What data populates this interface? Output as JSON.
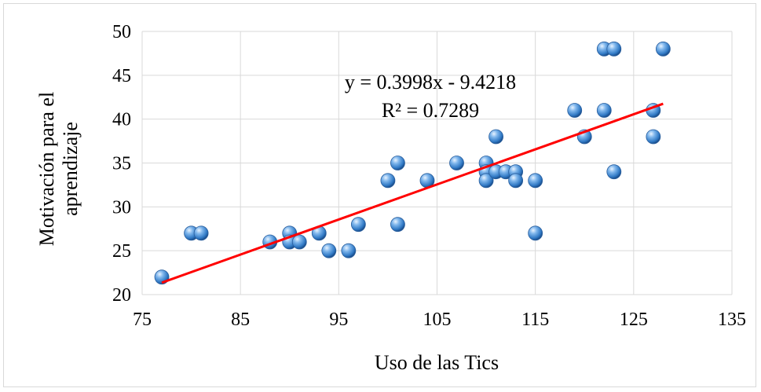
{
  "chart_data": {
    "type": "scatter",
    "title": "",
    "xlabel": "Uso de las Tics",
    "ylabel_lines": [
      "Motivación para el",
      "aprendizaje"
    ],
    "xlim": [
      75,
      135
    ],
    "ylim": [
      20,
      50
    ],
    "xticks": [
      75,
      85,
      95,
      105,
      115,
      125,
      135
    ],
    "yticks": [
      20,
      25,
      30,
      35,
      40,
      45,
      50
    ],
    "grid": "vertical and horizontal major gridlines",
    "legend": "none",
    "marker_color": "#4a90d9",
    "trendline_color": "#ff0000",
    "trendline": {
      "slope": 0.3998,
      "intercept": -9.4218,
      "x_start": 77,
      "x_end": 128
    },
    "annotations": [
      "y = 0.3998x - 9.4218",
      "R² = 0.7289"
    ],
    "points": [
      [
        77,
        22
      ],
      [
        80,
        27
      ],
      [
        81,
        27
      ],
      [
        88,
        26
      ],
      [
        90,
        27
      ],
      [
        90,
        26
      ],
      [
        91,
        26
      ],
      [
        93,
        27
      ],
      [
        94,
        25
      ],
      [
        96,
        25
      ],
      [
        97,
        28
      ],
      [
        100,
        33
      ],
      [
        101,
        35
      ],
      [
        101,
        28
      ],
      [
        104,
        33
      ],
      [
        107,
        35
      ],
      [
        110,
        35
      ],
      [
        110,
        34
      ],
      [
        110,
        33
      ],
      [
        111,
        38
      ],
      [
        111,
        34
      ],
      [
        112,
        34
      ],
      [
        113,
        34
      ],
      [
        113,
        33
      ],
      [
        115,
        33
      ],
      [
        115,
        27
      ],
      [
        119,
        41
      ],
      [
        120,
        38
      ],
      [
        122,
        48
      ],
      [
        122,
        41
      ],
      [
        123,
        48
      ],
      [
        123,
        34
      ],
      [
        127,
        41
      ],
      [
        127,
        38
      ],
      [
        128,
        48
      ]
    ]
  }
}
